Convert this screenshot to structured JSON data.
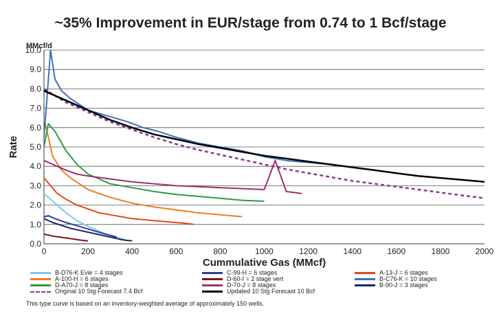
{
  "chart_data": {
    "type": "line",
    "title": "~35% Improvement in EUR/stage from 0.74 to 1 Bcf/stage",
    "xlabel": "Cummulative Gas (MMcf)",
    "ylabel": "Rate",
    "yunit": "MMcf/d",
    "xlim": [
      0,
      2000
    ],
    "ylim": [
      0,
      10
    ],
    "xticks": [
      0,
      200,
      400,
      600,
      800,
      1000,
      1200,
      1400,
      1600,
      1800,
      2000
    ],
    "xtick_labels": [
      "0",
      "200",
      "400",
      "600",
      "800",
      "1000",
      "1200",
      "1400",
      "1600",
      "1800",
      "2000"
    ],
    "yticks": [
      0,
      1,
      2,
      3,
      4,
      5,
      6,
      7,
      8,
      9,
      10
    ],
    "ytick_labels": [
      "0.0",
      "1.0",
      "2.0",
      "3.0",
      "4.0",
      "5.0",
      "6.0",
      "7.0",
      "8.0",
      "9.0",
      "10.0"
    ],
    "grid": "horizontal",
    "series": [
      {
        "name": "B-D76-K Evie = 4 stages",
        "color": "#7fc8ec",
        "style": "solid",
        "x": [
          0,
          30,
          60,
          100,
          150,
          200,
          260,
          320,
          370
        ],
        "y": [
          2.6,
          2.3,
          2.0,
          1.6,
          1.2,
          0.9,
          0.6,
          0.35,
          0.2
        ]
      },
      {
        "name": "C-99-H = 6 stages",
        "color": "#2c3f97",
        "style": "solid",
        "x": [
          0,
          20,
          50,
          100,
          160,
          220,
          280,
          330
        ],
        "y": [
          1.4,
          1.45,
          1.3,
          1.1,
          0.9,
          0.7,
          0.5,
          0.35
        ]
      },
      {
        "name": "A-13-J = 6 stages",
        "color": "#e24a1f",
        "style": "solid",
        "x": [
          0,
          30,
          60,
          100,
          150,
          200,
          250,
          300,
          350,
          400,
          450,
          500,
          550,
          600,
          650,
          680
        ],
        "y": [
          3.4,
          3.0,
          2.6,
          2.3,
          2.0,
          1.8,
          1.6,
          1.5,
          1.4,
          1.3,
          1.25,
          1.2,
          1.15,
          1.1,
          1.05,
          1.0
        ]
      },
      {
        "name": "A-100-H = 6 stages",
        "color": "#f07c26",
        "style": "solid",
        "x": [
          0,
          40,
          80,
          120,
          200,
          300,
          400,
          500,
          600,
          700,
          800,
          900
        ],
        "y": [
          6.5,
          4.5,
          3.8,
          3.4,
          2.8,
          2.4,
          2.1,
          1.9,
          1.75,
          1.6,
          1.5,
          1.4
        ]
      },
      {
        "name": "D-60-I = 2 stage vert",
        "color": "#7b1416",
        "style": "solid",
        "x": [
          0,
          20,
          40,
          70,
          100,
          130,
          160,
          200
        ],
        "y": [
          0.5,
          0.45,
          0.4,
          0.35,
          0.3,
          0.25,
          0.2,
          0.15
        ]
      },
      {
        "name": "B-C76-K = 10 stages",
        "color": "#3b73b9",
        "style": "solid",
        "x": [
          0,
          20,
          30,
          50,
          80,
          120,
          160,
          200,
          260,
          320,
          380,
          450,
          520,
          600,
          700,
          800,
          900,
          1000,
          1100,
          1200,
          1300,
          1340
        ],
        "y": [
          5.5,
          8.5,
          10.0,
          8.5,
          7.9,
          7.5,
          7.2,
          6.9,
          6.7,
          6.5,
          6.3,
          6.0,
          5.8,
          5.5,
          5.2,
          5.0,
          4.8,
          4.5,
          4.3,
          4.2,
          4.1,
          4.0
        ]
      },
      {
        "name": "D-A70-J = 8 stages",
        "color": "#2f9a45",
        "style": "solid",
        "x": [
          0,
          20,
          50,
          100,
          150,
          200,
          300,
          400,
          500,
          600,
          700,
          800,
          900,
          1000
        ],
        "y": [
          5.0,
          6.2,
          5.8,
          4.8,
          4.1,
          3.6,
          3.1,
          2.9,
          2.7,
          2.55,
          2.45,
          2.35,
          2.25,
          2.2
        ]
      },
      {
        "name": "D-70-J = 8 stages",
        "color": "#9c2f6b",
        "style": "solid",
        "x": [
          0,
          60,
          100,
          150,
          200,
          300,
          400,
          500,
          600,
          700,
          800,
          900,
          1000,
          1050,
          1100,
          1170
        ],
        "y": [
          4.3,
          4.0,
          3.8,
          3.6,
          3.5,
          3.35,
          3.2,
          3.1,
          3.0,
          2.95,
          2.9,
          2.85,
          2.8,
          4.3,
          2.7,
          2.6
        ]
      },
      {
        "name": "B-90-J = 3 stages",
        "color": "#1b2466",
        "style": "solid",
        "x": [
          0,
          40,
          80,
          120,
          180,
          240,
          300,
          360,
          400
        ],
        "y": [
          1.3,
          1.1,
          0.95,
          0.8,
          0.65,
          0.5,
          0.35,
          0.2,
          0.15
        ]
      },
      {
        "name": "Original 10 Stg Forecast 7.4 Bcf",
        "color": "#8a3a8c",
        "style": "dashed",
        "x": [
          0,
          100,
          200,
          300,
          400,
          500,
          600,
          700,
          800,
          900,
          1000,
          1100,
          1200,
          1300,
          1400,
          1500,
          1600,
          1700,
          1800,
          1900,
          2000
        ],
        "y": [
          8.0,
          7.3,
          6.8,
          6.3,
          5.9,
          5.5,
          5.15,
          4.85,
          4.6,
          4.35,
          4.1,
          3.85,
          3.65,
          3.45,
          3.25,
          3.1,
          2.95,
          2.8,
          2.65,
          2.5,
          2.35
        ]
      },
      {
        "name": "Updated 10 Stg Forecast 10 Bcf",
        "color": "#000000",
        "style": "solid",
        "x": [
          0,
          100,
          200,
          300,
          400,
          500,
          600,
          700,
          800,
          900,
          1000,
          1100,
          1200,
          1300,
          1400,
          1500,
          1600,
          1700,
          1800,
          1900,
          2000
        ],
        "y": [
          7.9,
          7.4,
          6.9,
          6.4,
          6.0,
          5.65,
          5.4,
          5.15,
          4.95,
          4.75,
          4.55,
          4.4,
          4.25,
          4.1,
          3.95,
          3.8,
          3.65,
          3.5,
          3.4,
          3.3,
          3.2
        ]
      }
    ]
  },
  "footnote": "This type curve is based on an inventory-weighted average of approximately 150 wells."
}
